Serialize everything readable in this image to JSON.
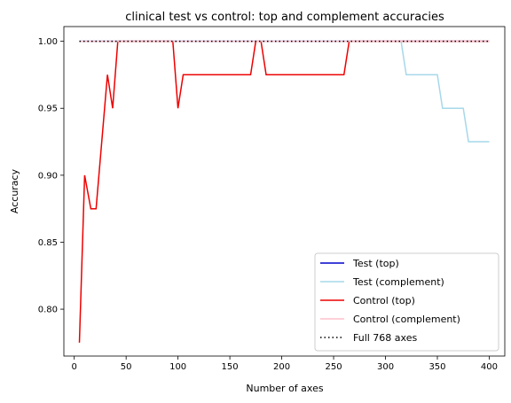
{
  "chart_data": {
    "type": "line",
    "title": "clinical test vs control: top and complement accuracies",
    "xlabel": "Number of axes",
    "ylabel": "Accuracy",
    "xlim": [
      -10,
      415
    ],
    "ylim": [
      0.765,
      1.011
    ],
    "xticks": [
      0,
      50,
      100,
      150,
      200,
      250,
      300,
      350,
      400
    ],
    "yticks": [
      0.8,
      0.85,
      0.9,
      0.95,
      1.0
    ],
    "xtick_labels": [
      "0",
      "50",
      "100",
      "150",
      "200",
      "250",
      "300",
      "350",
      "400"
    ],
    "ytick_labels": [
      "0.80",
      "0.85",
      "0.90",
      "0.95",
      "1.00"
    ],
    "grid": false,
    "legend_position": "lower-right",
    "series": [
      {
        "name": "Test (top)",
        "color": "#0000cc",
        "dash": "",
        "x": [
          5,
          10,
          16,
          21,
          26,
          32,
          37,
          42,
          400
        ],
        "y": [
          1.0,
          1.0,
          1.0,
          1.0,
          1.0,
          1.0,
          1.0,
          1.0,
          1.0
        ]
      },
      {
        "name": "Test (complement)",
        "color": "#a6d8ea",
        "dash": "",
        "x": [
          5,
          100,
          200,
          300,
          315,
          320,
          350,
          355,
          375,
          380,
          400
        ],
        "y": [
          1.0,
          1.0,
          1.0,
          1.0,
          1.0,
          0.975,
          0.975,
          0.95,
          0.95,
          0.925,
          0.925
        ]
      },
      {
        "name": "Control (top)",
        "color": "#ee0000",
        "dash": "",
        "x": [
          5,
          10,
          16,
          21,
          32,
          37,
          42,
          95,
          100,
          105,
          170,
          175,
          180,
          185,
          260,
          265,
          400
        ],
        "y": [
          0.775,
          0.9,
          0.875,
          0.875,
          0.975,
          0.95,
          1.0,
          1.0,
          0.95,
          0.975,
          0.975,
          1.0,
          1.0,
          0.975,
          0.975,
          1.0,
          1.0
        ]
      },
      {
        "name": "Control (complement)",
        "color": "#ffc0cb",
        "dash": "",
        "x": [
          5,
          400
        ],
        "y": [
          1.0,
          1.0
        ]
      },
      {
        "name": "Full 768 axes",
        "color": "#000000",
        "dash": "1.5,3",
        "x": [
          5,
          400
        ],
        "y": [
          1.0,
          1.0
        ]
      }
    ]
  }
}
